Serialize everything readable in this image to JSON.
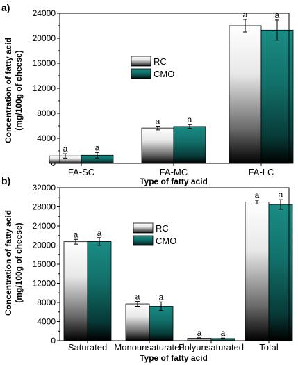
{
  "chart_data": [
    {
      "panel": "a)",
      "type": "bar",
      "categories": [
        "FA-SC",
        "FA-MC",
        "FA-LC"
      ],
      "series": [
        {
          "name": "RC",
          "values": [
            1200,
            5650,
            22000
          ],
          "errors": [
            350,
            300,
            1000
          ],
          "labels": [
            "a",
            "a",
            "a"
          ]
        },
        {
          "name": "CMO",
          "values": [
            1300,
            5900,
            21300
          ],
          "errors": [
            450,
            300,
            1600
          ],
          "labels": [
            "a",
            "a",
            "a"
          ]
        }
      ],
      "xlabel": "Type of fatty acid",
      "ylabel_line1": "Concentration of fatty acid",
      "ylabel_line2": "(mg/100g  of cheese)",
      "ylim": [
        0,
        24000
      ],
      "yticks": [
        0,
        4000,
        8000,
        12000,
        16000,
        20000,
        24000
      ],
      "legend_position": "left"
    },
    {
      "panel": "b)",
      "type": "bar",
      "categories": [
        "Saturated",
        "Monounsaturated",
        "Polyunsaturated",
        "Total"
      ],
      "series": [
        {
          "name": "RC",
          "values": [
            20700,
            7700,
            500,
            29000
          ],
          "errors": [
            500,
            500,
            100,
            400
          ],
          "labels": [
            "a",
            "a",
            "a",
            "a"
          ]
        },
        {
          "name": "CMO",
          "values": [
            20750,
            7200,
            450,
            28500
          ],
          "errors": [
            800,
            900,
            100,
            1000
          ],
          "labels": [
            "a",
            "a",
            "a",
            "a"
          ]
        }
      ],
      "xlabel": "Type of fatty acid",
      "ylabel_line1": "Concentration of fatty acid",
      "ylabel_line2": "(mg/100g  of cheese)",
      "ylim": [
        0,
        32000
      ],
      "yticks": [
        0,
        4000,
        8000,
        12000,
        16000,
        20000,
        24000,
        28000,
        32000
      ],
      "legend_position": "center"
    }
  ],
  "colors": {
    "rc_top": "#ffffff",
    "rc_bottom": "#000000",
    "cmo_top": "#1a8c84",
    "cmo_bottom": "#000000"
  }
}
